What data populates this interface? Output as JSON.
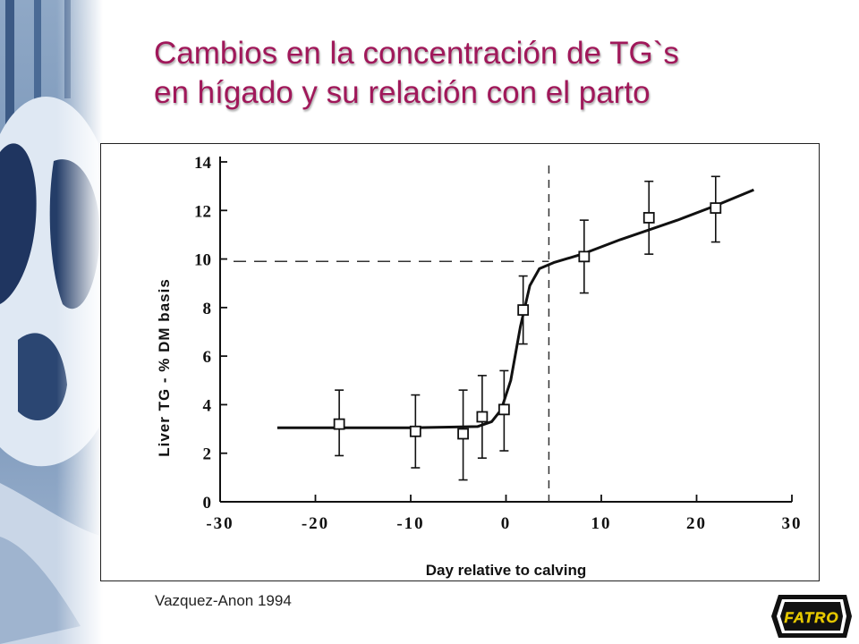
{
  "slide": {
    "title_line1": "Cambios en la concentración de TG`s",
    "title_line2": "en hígado y su relación con el parto",
    "citation": "Vazquez-Anon 1994",
    "logo_text": "FATRO",
    "title_color": "#a0185a"
  },
  "chart_data": {
    "type": "line",
    "xlabel": "Day relative to calving",
    "ylabel": "Liver TG - % DM basis",
    "xlim": [
      -30,
      30
    ],
    "ylim": [
      0,
      14
    ],
    "x_ticks": [
      -30,
      -20,
      -10,
      0,
      10,
      20,
      30
    ],
    "y_ticks": [
      0,
      2,
      4,
      6,
      8,
      10,
      12,
      14
    ],
    "x_tick_labels": [
      "-30",
      "-20",
      "-10",
      "0",
      "10",
      "20",
      "30"
    ],
    "y_tick_labels": [
      "0",
      "2",
      "4",
      "6",
      "8",
      "10",
      "12",
      "14"
    ],
    "points": [
      {
        "x": -17.5,
        "y": 3.2,
        "err_low": 1.9,
        "err_high": 4.6
      },
      {
        "x": -9.5,
        "y": 2.9,
        "err_low": 1.4,
        "err_high": 4.4
      },
      {
        "x": -4.5,
        "y": 2.8,
        "err_low": 0.9,
        "err_high": 4.6
      },
      {
        "x": -2.5,
        "y": 3.5,
        "err_low": 1.8,
        "err_high": 5.2
      },
      {
        "x": -0.2,
        "y": 3.8,
        "err_low": 2.1,
        "err_high": 5.4
      },
      {
        "x": 1.8,
        "y": 7.9,
        "err_low": 6.5,
        "err_high": 9.3
      },
      {
        "x": 8.2,
        "y": 10.1,
        "err_low": 8.6,
        "err_high": 11.6
      },
      {
        "x": 15.0,
        "y": 11.7,
        "err_low": 10.2,
        "err_high": 13.2
      },
      {
        "x": 22.0,
        "y": 12.1,
        "err_low": 10.7,
        "err_high": 13.4
      }
    ],
    "fit_curve": [
      {
        "x": -24,
        "y": 3.05
      },
      {
        "x": -10,
        "y": 3.05
      },
      {
        "x": -3,
        "y": 3.1
      },
      {
        "x": -1.5,
        "y": 3.3
      },
      {
        "x": -0.5,
        "y": 3.8
      },
      {
        "x": 0.5,
        "y": 5.0
      },
      {
        "x": 1.5,
        "y": 7.2
      },
      {
        "x": 2.5,
        "y": 8.9
      },
      {
        "x": 3.5,
        "y": 9.6
      },
      {
        "x": 5,
        "y": 9.85
      },
      {
        "x": 8,
        "y": 10.2
      },
      {
        "x": 12,
        "y": 10.8
      },
      {
        "x": 18,
        "y": 11.6
      },
      {
        "x": 22,
        "y": 12.2
      },
      {
        "x": 26,
        "y": 12.85
      }
    ],
    "reference_lines": {
      "vertical_x": 4.5,
      "horizontal_y": 9.9
    },
    "grid": false
  }
}
